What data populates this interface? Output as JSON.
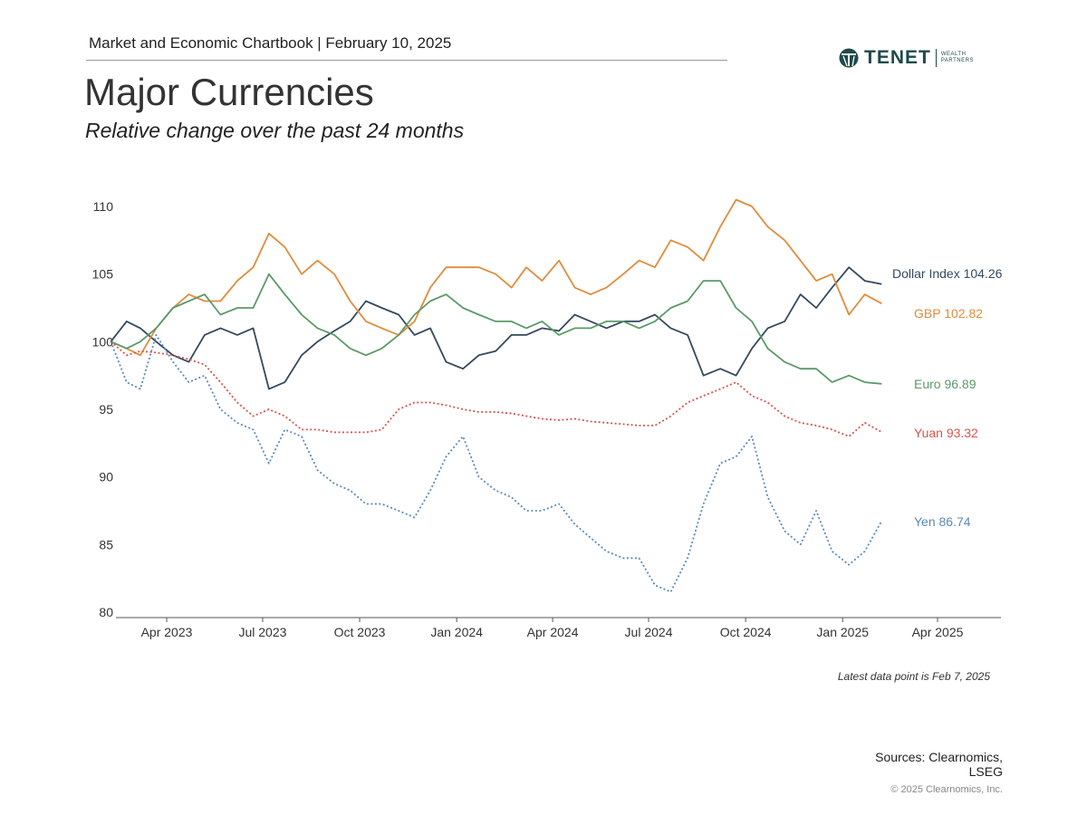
{
  "header": {
    "chartbook": "Market and Economic Chartbook | February 10, 2025",
    "title": "Major Currencies",
    "subtitle": "Relative change over the past 24 months"
  },
  "logo": {
    "name": "TENET",
    "sub1": "WEALTH",
    "sub2": "PARTNERS"
  },
  "footer": {
    "note": "Latest data point is Feb 7, 2025",
    "sources": "Sources: Clearnomics, LSEG",
    "copyright": "© 2025 Clearnomics, Inc."
  },
  "chart_data": {
    "type": "line",
    "title": "Major Currencies",
    "ylim": [
      80,
      111
    ],
    "yticks": [
      80,
      85,
      90,
      95,
      100,
      105,
      110
    ],
    "xticks": [
      {
        "date": "2023-04-01",
        "label": "Apr 2023"
      },
      {
        "date": "2023-07-01",
        "label": "Jul 2023"
      },
      {
        "date": "2023-10-01",
        "label": "Oct 2023"
      },
      {
        "date": "2024-01-01",
        "label": "Jan 2024"
      },
      {
        "date": "2024-04-01",
        "label": "Apr 2024"
      },
      {
        "date": "2024-07-01",
        "label": "Jul 2024"
      },
      {
        "date": "2024-10-01",
        "label": "Oct 2024"
      },
      {
        "date": "2025-01-01",
        "label": "Jan 2025"
      },
      {
        "date": "2025-04-01",
        "label": "Apr 2025"
      }
    ],
    "x": [
      "2023-02-07",
      "2023-02-22",
      "2023-03-07",
      "2023-03-22",
      "2023-04-07",
      "2023-04-22",
      "2023-05-07",
      "2023-05-22",
      "2023-06-07",
      "2023-06-22",
      "2023-07-07",
      "2023-07-22",
      "2023-08-07",
      "2023-08-22",
      "2023-09-07",
      "2023-09-22",
      "2023-10-07",
      "2023-10-22",
      "2023-11-07",
      "2023-11-22",
      "2023-12-07",
      "2023-12-22",
      "2024-01-07",
      "2024-01-22",
      "2024-02-07",
      "2024-02-22",
      "2024-03-07",
      "2024-03-22",
      "2024-04-07",
      "2024-04-22",
      "2024-05-07",
      "2024-05-22",
      "2024-06-07",
      "2024-06-22",
      "2024-07-07",
      "2024-07-22",
      "2024-08-07",
      "2024-08-22",
      "2024-09-07",
      "2024-09-22",
      "2024-10-07",
      "2024-10-22",
      "2024-11-07",
      "2024-11-22",
      "2024-12-07",
      "2024-12-22",
      "2025-01-07",
      "2025-01-22",
      "2025-02-07"
    ],
    "series": [
      {
        "name": "Dollar Index",
        "label": "Dollar Index 104.26",
        "color": "#34495e",
        "dash": false,
        "values": [
          100,
          101.5,
          101,
          100,
          99,
          98.5,
          100.5,
          101,
          100.5,
          101,
          96.5,
          97,
          99,
          100,
          100.8,
          101.5,
          103,
          102.5,
          102,
          100.5,
          101,
          98.5,
          98,
          99,
          99.3,
          100.5,
          100.5,
          101,
          100.8,
          102,
          101.5,
          101,
          101.5,
          101.5,
          102,
          101,
          100.5,
          97.5,
          98,
          97.5,
          99.5,
          101,
          101.5,
          103.5,
          102.5,
          104,
          105.5,
          104.5,
          104.26
        ]
      },
      {
        "name": "GBP",
        "label": "GBP 102.82",
        "color": "#e08c3c",
        "dash": false,
        "values": [
          100,
          99.5,
          99,
          101,
          102.5,
          103.5,
          103,
          103,
          104.5,
          105.5,
          108,
          107,
          105,
          106,
          105,
          103,
          101.5,
          101,
          100.5,
          101.5,
          104,
          105.5,
          105.5,
          105.5,
          105,
          104,
          105.5,
          104.5,
          106,
          104,
          103.5,
          104,
          105,
          106,
          105.5,
          107.5,
          107,
          106,
          108.5,
          110.5,
          110,
          108.5,
          107.5,
          106,
          104.5,
          105,
          102,
          103.5,
          102.82
        ]
      },
      {
        "name": "Euro",
        "label": "Euro 96.89",
        "color": "#5a9a68",
        "dash": false,
        "values": [
          100,
          99.5,
          100,
          101,
          102.5,
          103,
          103.5,
          102,
          102.5,
          102.5,
          105,
          103.5,
          102,
          101,
          100.5,
          99.5,
          99,
          99.5,
          100.5,
          102,
          103,
          103.5,
          102.5,
          102,
          101.5,
          101.5,
          101,
          101.5,
          100.5,
          101,
          101,
          101.5,
          101.5,
          101,
          101.5,
          102.5,
          103,
          104.5,
          104.5,
          102.5,
          101.5,
          99.5,
          98.5,
          98,
          98,
          97,
          97.5,
          97,
          96.89
        ]
      },
      {
        "name": "Yuan",
        "label": "Yuan 93.32",
        "color": "#d9534f",
        "dash": true,
        "values": [
          100,
          99,
          99.3,
          99.2,
          99,
          98.7,
          98.3,
          97,
          95.5,
          94.5,
          95,
          94.5,
          93.5,
          93.5,
          93.3,
          93.3,
          93.3,
          93.5,
          95,
          95.5,
          95.5,
          95.3,
          95,
          94.8,
          94.8,
          94.7,
          94.5,
          94.3,
          94.2,
          94.3,
          94.1,
          94,
          93.9,
          93.8,
          93.8,
          94.5,
          95.5,
          96,
          96.5,
          97,
          96,
          95.5,
          94.5,
          94,
          93.8,
          93.5,
          93,
          94,
          93.32
        ]
      },
      {
        "name": "Yen",
        "label": "Yen 86.74",
        "color": "#5b8ab8",
        "dash": true,
        "values": [
          100,
          97,
          96.5,
          100.5,
          98.5,
          97,
          97.5,
          95,
          94,
          93.5,
          91,
          93.5,
          93,
          90.5,
          89.5,
          89,
          88,
          88,
          87.5,
          87,
          89,
          91.5,
          93,
          90,
          89,
          88.5,
          87.5,
          87.5,
          88,
          86.5,
          85.5,
          84.5,
          84,
          84,
          82,
          81.5,
          84,
          88,
          91,
          91.5,
          93,
          88.5,
          86,
          85,
          87.5,
          84.5,
          83.5,
          84.5,
          86.74
        ]
      }
    ]
  }
}
